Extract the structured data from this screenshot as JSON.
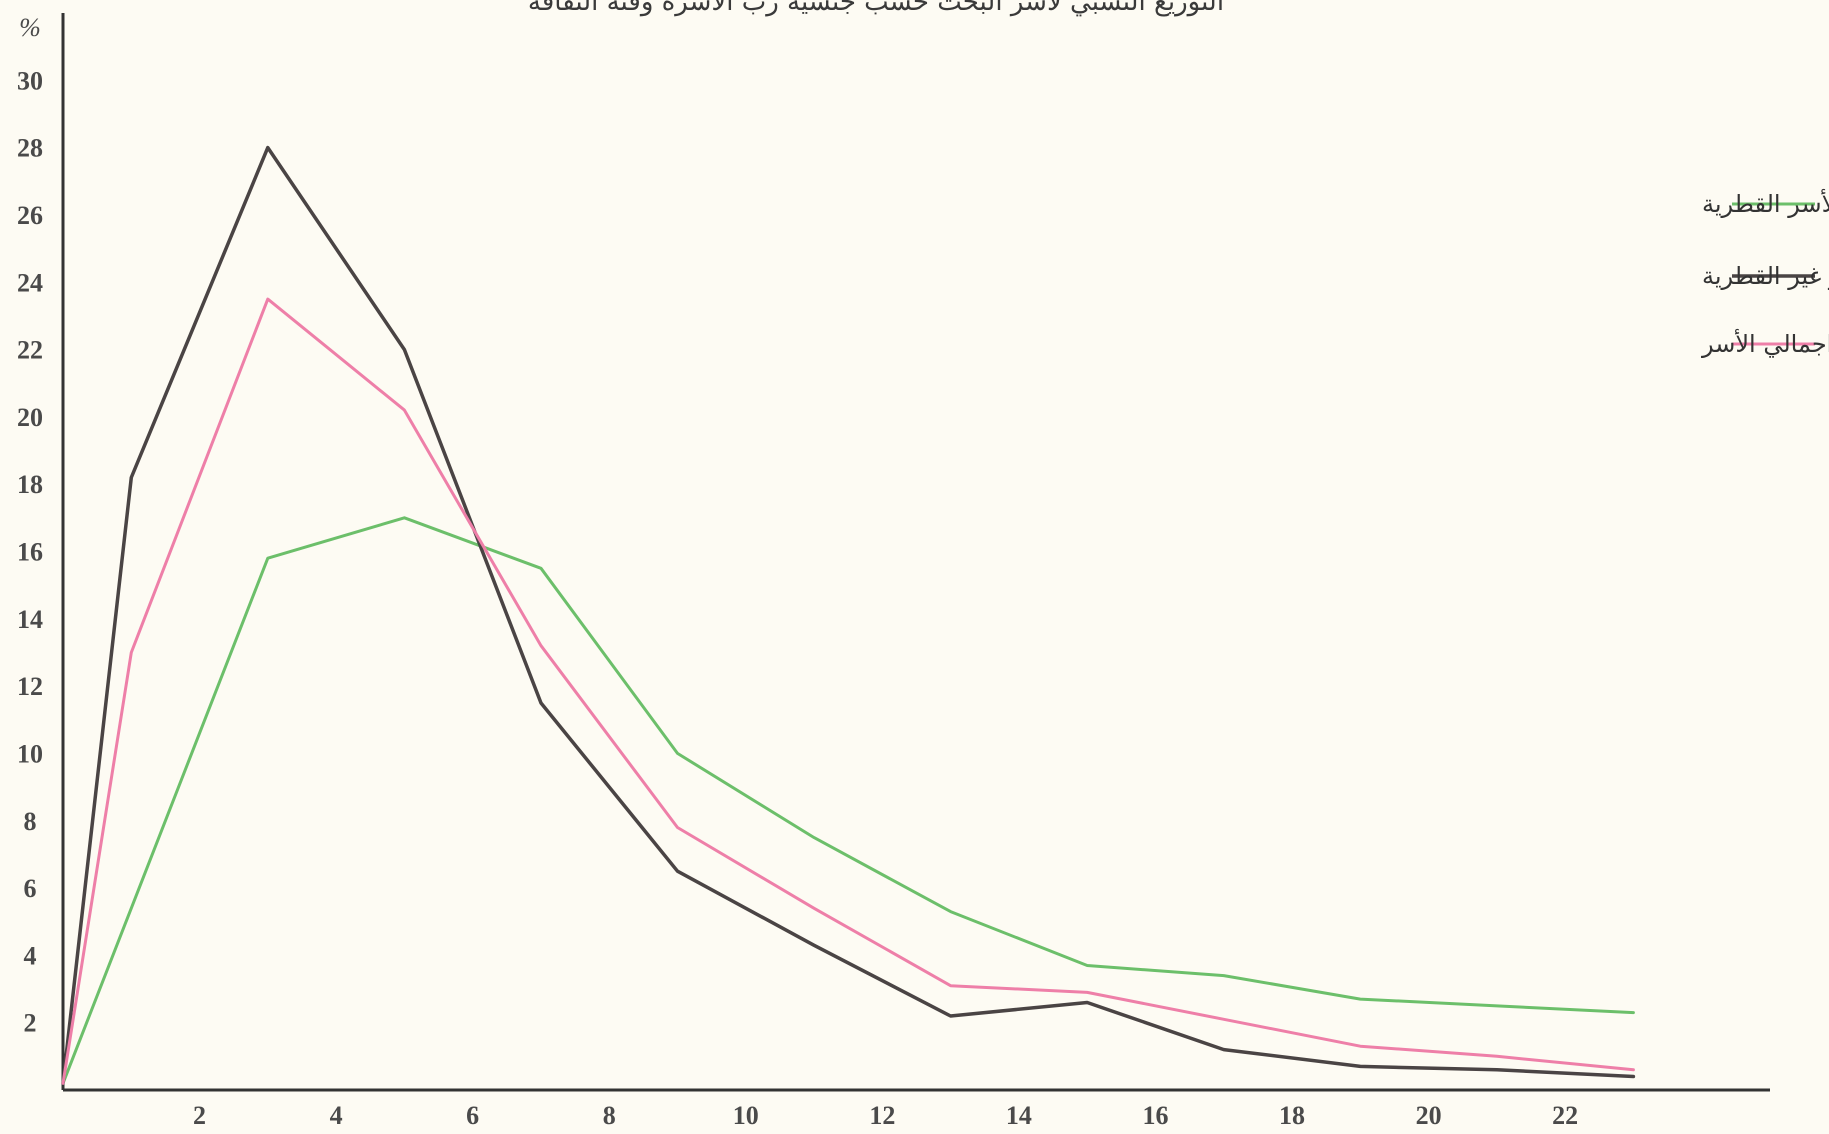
{
  "chart_data": {
    "type": "line",
    "title": "التوزيع النسبي لأسر البحث حسب جنسية رب الأسرة وفئة الثقافة",
    "ylabel": "%",
    "xlabel": "",
    "xlim": [
      0,
      25
    ],
    "ylim": [
      0,
      32
    ],
    "x_ticks": [
      2,
      4,
      6,
      8,
      10,
      12,
      14,
      16,
      18,
      20,
      22
    ],
    "y_ticks": [
      2,
      4,
      6,
      8,
      10,
      12,
      14,
      16,
      18,
      20,
      22,
      24,
      26,
      28,
      30
    ],
    "grid": false,
    "legend_position": "top-right",
    "series": [
      {
        "name": "الأسر القطرية",
        "color": "#6cbf6a",
        "points": [
          [
            0,
            0.2
          ],
          [
            3,
            15.8
          ],
          [
            5,
            17
          ],
          [
            7,
            15.5
          ],
          [
            9,
            10
          ],
          [
            11,
            7.5
          ],
          [
            13,
            5.3
          ],
          [
            15,
            3.7
          ],
          [
            17,
            3.4
          ],
          [
            19,
            2.7
          ],
          [
            21,
            2.5
          ],
          [
            23,
            2.3
          ]
        ]
      },
      {
        "name": "الأسر غير القطرية",
        "color": "#4a4444",
        "points": [
          [
            0,
            0.2
          ],
          [
            1,
            18.2
          ],
          [
            3,
            28
          ],
          [
            5,
            22
          ],
          [
            7,
            11.5
          ],
          [
            9,
            6.5
          ],
          [
            11,
            4.3
          ],
          [
            13,
            2.2
          ],
          [
            15,
            2.6
          ],
          [
            17,
            1.2
          ],
          [
            19,
            0.7
          ],
          [
            21,
            0.6
          ],
          [
            23,
            0.4
          ]
        ]
      },
      {
        "name": "اجمالي الأسر",
        "color": "#ee7fa8",
        "points": [
          [
            0,
            0.2
          ],
          [
            1,
            13
          ],
          [
            3,
            23.5
          ],
          [
            5,
            20.2
          ],
          [
            7,
            13.2
          ],
          [
            9,
            7.8
          ],
          [
            11,
            5.4
          ],
          [
            13,
            3.1
          ],
          [
            15,
            2.9
          ],
          [
            17,
            2.1
          ],
          [
            19,
            1.3
          ],
          [
            21,
            1
          ],
          [
            23,
            0.6
          ]
        ]
      }
    ]
  }
}
